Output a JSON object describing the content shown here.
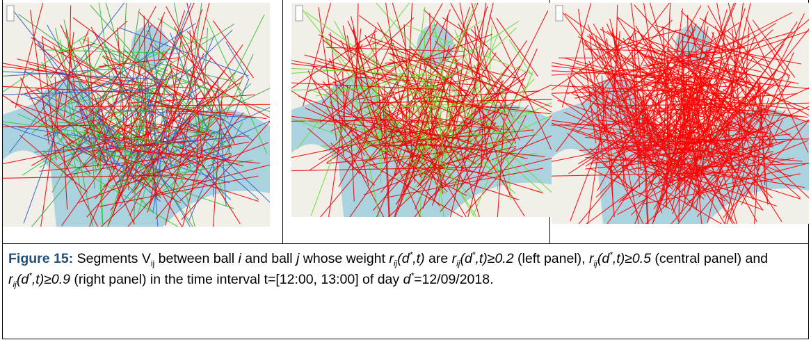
{
  "figure": {
    "label": "Figure 15:",
    "caption": [
      "Segments V",
      "ij",
      " between ball ",
      "i",
      " and ball ",
      "j",
      " whose weight ",
      "r",
      "ij",
      "(d",
      "*",
      ",t)",
      " are ",
      "r",
      "ij",
      "(d",
      "*",
      ",t)≥0.2",
      " (left panel), ",
      "r",
      "ij",
      "(d",
      "*",
      ",t)≥0.5",
      " (central panel) and ",
      "r",
      "ij",
      "(d",
      "*",
      ",t)≥0.9",
      " (right panel) in the time interval t=[12:00, 13:00] of day ",
      "d",
      "*",
      "=12/09/2018."
    ]
  }
}
